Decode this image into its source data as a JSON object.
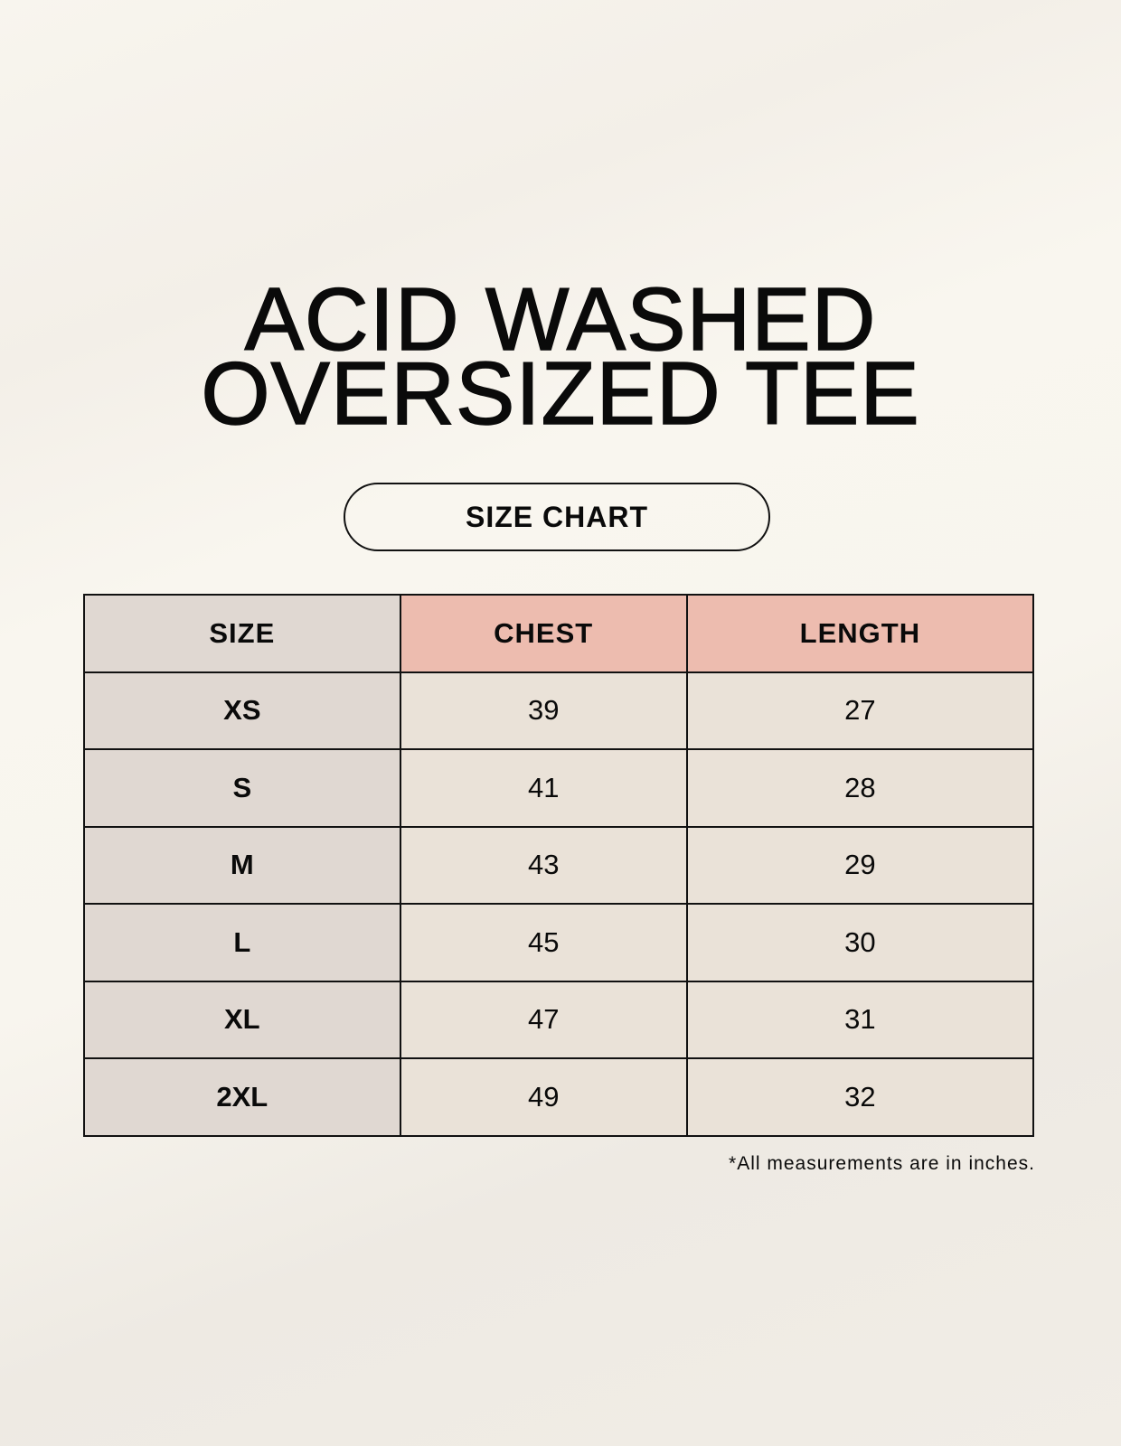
{
  "title": {
    "line1": "ACID WASHED",
    "line2": "OVERSIZED TEE"
  },
  "badge": "SIZE CHART",
  "table": {
    "headers": [
      "SIZE",
      "CHEST",
      "LENGTH"
    ],
    "rows": [
      [
        "XS",
        "39",
        "27"
      ],
      [
        "S",
        "41",
        "28"
      ],
      [
        "M",
        "43",
        "29"
      ],
      [
        "L",
        "45",
        "30"
      ],
      [
        "XL",
        "47",
        "31"
      ],
      [
        "2XL",
        "49",
        "32"
      ]
    ]
  },
  "footnote": "*All measurements are in inches.",
  "colors": {
    "size_column": "#e0d8d2",
    "header_accent": "#edbcaf",
    "value_cells": "#eae2d8"
  }
}
